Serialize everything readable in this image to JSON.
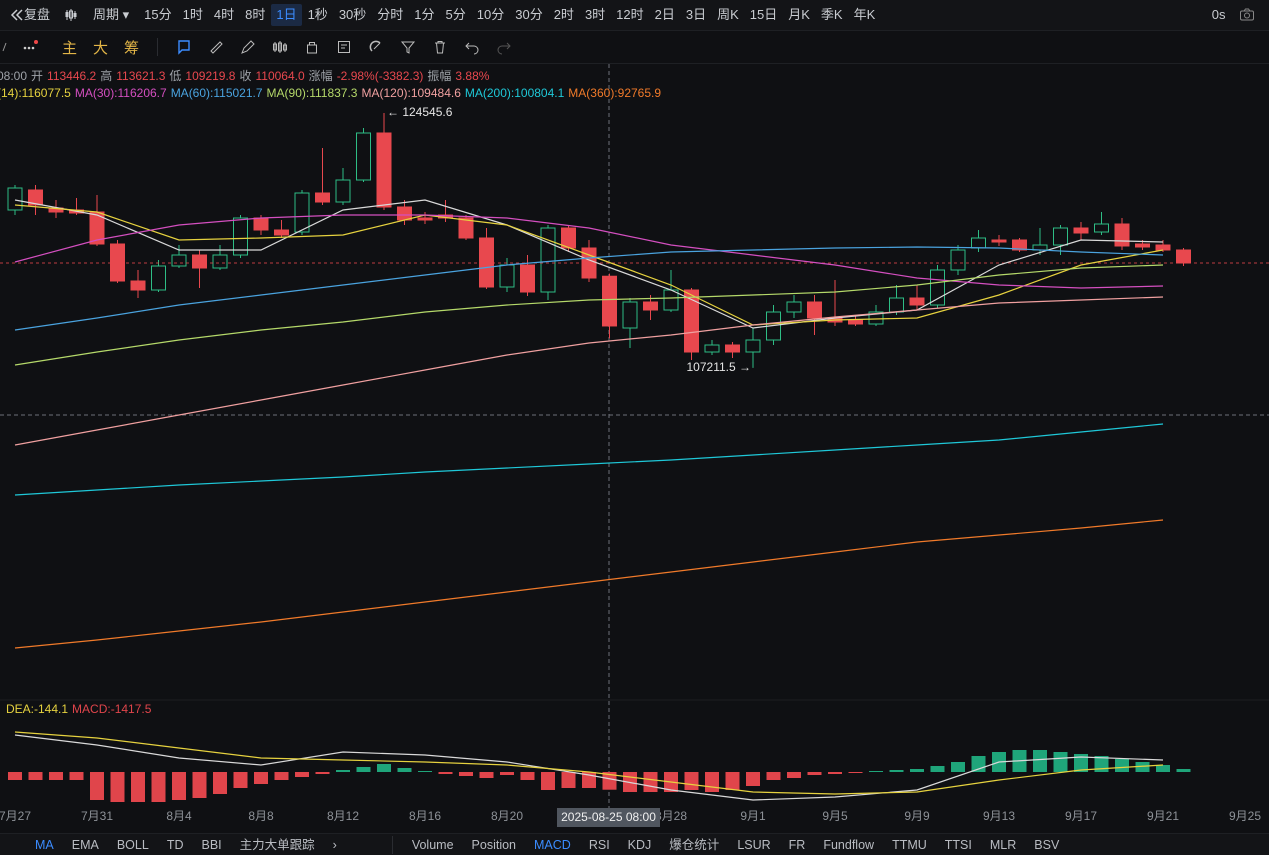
{
  "toolbar": {
    "replay": "复盘",
    "period": "周期",
    "intervals": [
      "15分",
      "1时",
      "4时",
      "8时",
      "1日",
      "1秒",
      "30秒",
      "分时",
      "1分",
      "5分",
      "10分",
      "30分",
      "2时",
      "3时",
      "12时",
      "2日",
      "3日",
      "周K",
      "15日",
      "月K",
      "季K",
      "年K"
    ],
    "active": "1日",
    "timer": "0s"
  },
  "subbar": {
    "indicators": [
      "主",
      "大",
      "筹"
    ]
  },
  "info": [
    "08:00",
    "开",
    "113446.2",
    "高",
    "113621.3",
    "低",
    "109219.8",
    "收",
    "110064.0",
    "涨幅",
    "-2.98%(-3382.3)",
    "振幅",
    "3.88%"
  ],
  "crosshair_label": "2025-08-25 08:00",
  "tabs_left": [
    "MA",
    "EMA",
    "BOLL",
    "TD",
    "BBI",
    "主力大单跟踪"
  ],
  "tabs_right": [
    "Volume",
    "Position",
    "MACD",
    "RSI",
    "KDJ",
    "爆仓统计",
    "LSUR",
    "FR",
    "Fundflow",
    "TTMU",
    "TTSI",
    "MLR",
    "BSV"
  ],
  "active_tabs": [
    "MA",
    "MACD"
  ],
  "chart_data": [
    {
      "type": "candlestick",
      "categories": [
        null,
        null,
        null,
        null,
        null,
        null,
        null,
        null,
        null,
        null,
        null,
        null,
        null,
        null,
        null,
        null,
        null,
        null,
        null,
        null,
        null,
        null,
        null,
        null,
        null,
        null,
        null,
        null,
        null,
        null,
        null,
        null,
        null,
        null,
        null,
        null,
        null,
        null,
        null,
        null,
        null,
        null,
        null,
        null,
        null,
        null,
        null,
        null,
        null,
        null,
        null,
        null,
        null,
        null,
        null,
        null,
        null,
        null
      ],
      "open": [
        117950,
        119310,
        118086,
        117950,
        117814,
        115638,
        113122,
        112510,
        114142,
        114890,
        114006,
        114890,
        117406,
        116590,
        116454,
        119106,
        118494,
        119990,
        123186,
        118154,
        117406,
        117610,
        117406,
        116046,
        112714,
        114210,
        112374,
        116726,
        115366,
        113446.2,
        109926,
        111694,
        111150,
        112510,
        108294,
        108770,
        108294,
        109110,
        111014,
        111694,
        110606,
        110470,
        110198,
        111014,
        111966,
        111490,
        113870,
        115366,
        115910,
        115910,
        115230,
        115570,
        116726,
        116454,
        116998,
        115638,
        115570,
        115230
      ],
      "high": [
        119650,
        119650,
        118630,
        118766,
        118970,
        115910,
        113870,
        114550,
        115570,
        115230,
        115570,
        117610,
        117610,
        117270,
        119310,
        122166,
        120806,
        123526,
        124545.6,
        118630,
        117814,
        118630,
        117610,
        116726,
        114686,
        114890,
        116930,
        116930,
        115910,
        113621.3,
        111966,
        112170,
        113870,
        112646,
        109110,
        108974,
        109926,
        111490,
        112170,
        112170,
        113190,
        110810,
        111490,
        112850,
        112850,
        114210,
        115570,
        116590,
        116250,
        116046,
        116726,
        116930,
        117134,
        117814,
        117406,
        115910,
        115910,
        115366
      ],
      "low": [
        117610,
        117610,
        117406,
        117610,
        115502,
        112986,
        111966,
        112374,
        114006,
        112646,
        113870,
        114686,
        116250,
        116046,
        116250,
        118290,
        118290,
        119854,
        117950,
        116930,
        116998,
        117134,
        115910,
        112578,
        112374,
        112102,
        111830,
        115094,
        113054,
        109219.8,
        108566,
        110470,
        111014,
        107750,
        108090,
        107886,
        107211.5,
        108770,
        110606,
        109450,
        110062,
        110062,
        110062,
        110810,
        111150,
        111286,
        113530,
        115094,
        115502,
        115094,
        114890,
        114890,
        115910,
        116250,
        115230,
        115230,
        115094,
        114142
      ],
      "close": [
        119446,
        118290,
        117814,
        117746,
        115638,
        113122,
        112510,
        114142,
        114890,
        114006,
        114890,
        117406,
        116590,
        116250,
        119106,
        118494,
        119990,
        123186,
        118154,
        117270,
        117270,
        117406,
        116046,
        112714,
        114210,
        112374,
        116726,
        115366,
        113326,
        110064.0,
        111694,
        111150,
        112510,
        108294,
        108770,
        108294,
        109110,
        111014,
        111694,
        110606,
        110334,
        110198,
        111014,
        111966,
        111490,
        113870,
        115230,
        116046,
        115774,
        115230,
        115570,
        116726,
        116386,
        116998,
        115502,
        115434,
        115230,
        114346
      ],
      "ylim": [
        84630,
        127810
      ],
      "up_color": "#2ebd85",
      "down_color": "#e8484e",
      "high_label": "← 124545.6",
      "low_label": "107211.5 →"
    },
    {
      "type": "line",
      "categories": [
        "7月27",
        "7月31",
        "8月4",
        "8月8",
        "8月12",
        "8月16",
        "8月20",
        null,
        "8月28",
        "9月1",
        "9月5",
        "9月9",
        "9月13",
        "9月17",
        "9月21",
        "9月25"
      ],
      "ylim": [
        84630,
        127810
      ],
      "series": [
        {
          "color": "#d9d9d9",
          "values": [
            118630,
            117610,
            115230,
            115230,
            117950,
            118630,
            116930,
            114550,
            112510,
            109926,
            110606,
            111150,
            114210,
            115910,
            115774,
            null
          ]
        },
        {
          "name": "(14):116077.5",
          "color": "#e6d23f",
          "values": [
            118290,
            117814,
            115910,
            116046,
            116250,
            117610,
            116930,
            114890,
            112850,
            110130,
            110470,
            110606,
            112170,
            114210,
            115230,
            null
          ]
        },
        {
          "name": "MA(30):116206.7",
          "color": "#d44fc0",
          "values": [
            114414,
            115910,
            116930,
            117406,
            117610,
            117610,
            117406,
            116726,
            115570,
            114890,
            114210,
            113326,
            112850,
            112646,
            112782,
            null
          ]
        },
        {
          "name": "MA(60):115021.7",
          "color": "#4aa3df",
          "values": [
            109790,
            110606,
            111490,
            112170,
            112850,
            113530,
            114210,
            114686,
            115094,
            115230,
            115366,
            115434,
            115366,
            115094,
            114890,
            null
          ]
        },
        {
          "name": "MA(90):111837.3",
          "color": "#b5d96a",
          "values": [
            107410,
            108294,
            109110,
            109790,
            110334,
            111014,
            111490,
            111830,
            111966,
            112170,
            112374,
            112850,
            113530,
            114006,
            114210,
            null
          ]
        },
        {
          "name": "MA(120):109484.6",
          "color": "#f0a0a0",
          "values": [
            101970,
            102990,
            104010,
            105030,
            106050,
            107070,
            108090,
            108906,
            109450,
            110130,
            110674,
            111150,
            111626,
            111830,
            112034,
            null
          ]
        },
        {
          "name": "MA(200):100804.1",
          "color": "#1fc8d8",
          "values": [
            98570,
            98910,
            99250,
            99522,
            99794,
            100134,
            100406,
            100678,
            100950,
            101290,
            101630,
            101970,
            102310,
            102854,
            103398,
            null
          ]
        },
        {
          "name": "MA(360):92765.9",
          "color": "#f07a2a",
          "values": [
            88166,
            88710,
            89322,
            89934,
            90614,
            91294,
            91974,
            92654,
            93334,
            94014,
            94694,
            95374,
            95850,
            96326,
            96870,
            null
          ]
        }
      ]
    },
    {
      "type": "bar",
      "name": "MACD:-1417.5",
      "categories": [
        null,
        null,
        null,
        null,
        null,
        null,
        null,
        null,
        null,
        null,
        null,
        null,
        null,
        null,
        null,
        null,
        null,
        null,
        null,
        null,
        null,
        null,
        null,
        null,
        null,
        null,
        null,
        null,
        null,
        null,
        null,
        null,
        null,
        null,
        null,
        null,
        null,
        null,
        null,
        null,
        null,
        null,
        null,
        null,
        null,
        null,
        null,
        null,
        null,
        null,
        null,
        null,
        null,
        null,
        null,
        null,
        null,
        null
      ],
      "values": [
        -640,
        -640,
        -640,
        -640,
        -2240,
        -2400,
        -2400,
        -2400,
        -2240,
        -2080,
        -1760,
        -1280,
        -960,
        -640,
        -400,
        -160,
        160,
        400,
        640,
        320,
        80,
        -160,
        -320,
        -480,
        -240,
        -640,
        -1440,
        -1280,
        -1280,
        -1417.5,
        -1600,
        -1600,
        -1600,
        -1440,
        -1600,
        -1440,
        -1120,
        -640,
        -480,
        -240,
        -160,
        -80,
        80,
        160,
        240,
        480,
        800,
        1280,
        1600,
        1760,
        1760,
        1600,
        1440,
        1280,
        1040,
        800,
        560,
        240
      ],
      "ylim": [
        -2640,
        4160
      ],
      "up_color": "#1fa57a",
      "down_color": "#e0454b"
    },
    {
      "type": "line",
      "categories": [
        null,
        null,
        null,
        null,
        null,
        null,
        null,
        null,
        null,
        null,
        null,
        null,
        null,
        null,
        null,
        null
      ],
      "ylim": [
        -2640,
        4160
      ],
      "series": [
        {
          "color": "#d9d9d9",
          "values": [
            2960,
            2160,
            1120,
            560,
            1600,
            1360,
            800,
            -240,
            -1440,
            -2240,
            -2000,
            -1440,
            800,
            1200,
            960,
            null
          ]
        },
        {
          "name": "DEA:-144.1",
          "color": "#e6d23f",
          "values": [
            3200,
            2720,
            1920,
            1120,
            960,
            800,
            560,
            0,
            -800,
            -1600,
            -1760,
            -1600,
            -640,
            160,
            560,
            null
          ]
        }
      ]
    }
  ]
}
